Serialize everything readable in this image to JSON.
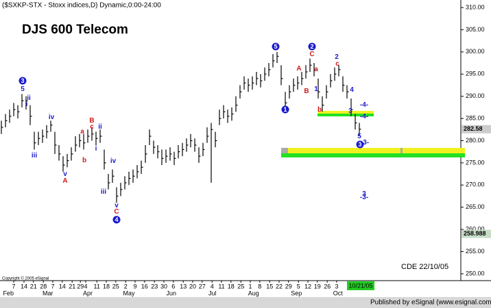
{
  "chart_data": {
    "type": "hlc",
    "header": "($SXKP-STX - Stoxx indices,D) Dynamic,0:00-24:00",
    "title": "DJS 600 Telecom",
    "note": "CDE 22/10/05",
    "copyright": "Copyright © 2005 eSignal",
    "footer": "Published by eSignal (www.esignal.com)",
    "color": "#000000",
    "high": [
      284.5,
      286,
      287,
      288.5,
      288,
      290.5,
      290,
      288,
      282,
      282,
      282.5,
      283.5,
      284.5,
      282,
      279,
      276.5,
      277,
      278.5,
      281,
      281.5,
      281.5,
      282.5,
      283,
      282,
      282.5,
      278,
      272.5,
      273.5,
      269.5,
      270.5,
      272,
      273,
      273.5,
      274.5,
      275.5,
      279,
      282.5,
      280,
      279,
      278,
      278,
      278.5,
      277.5,
      279,
      279.5,
      280.5,
      281.5,
      280.5,
      278.5,
      279.5,
      283,
      284,
      282,
      287,
      288,
      287,
      287.5,
      290,
      292.5,
      294.5,
      294,
      294.5,
      295.5,
      295,
      296.5,
      297.5,
      299.5,
      300,
      297,
      291,
      292.5,
      294,
      294.5,
      295.5,
      297,
      298.5,
      297.5,
      294,
      290,
      292.5,
      295,
      296.5,
      297,
      294.5,
      292.5,
      289.5,
      286,
      284
    ],
    "low": [
      281.5,
      283,
      284,
      285.5,
      285,
      287.5,
      287,
      283.5,
      278,
      279,
      279.5,
      280.5,
      282,
      277,
      275.5,
      273,
      274,
      275.5,
      277.5,
      278.5,
      278,
      279.5,
      280,
      279,
      279.5,
      273.5,
      269,
      270.5,
      266,
      267.5,
      269,
      270,
      270.5,
      271.5,
      272.5,
      275,
      279,
      277,
      276,
      274.5,
      275,
      275.5,
      274.5,
      276,
      276.5,
      277.5,
      278.5,
      277.5,
      275,
      276.5,
      279.5,
      270.5,
      278.5,
      283.5,
      285,
      284,
      284.5,
      286.5,
      289.5,
      291.5,
      291,
      291.5,
      292.5,
      292,
      293.5,
      294.5,
      296.5,
      297.5,
      292.5,
      287,
      289.5,
      291,
      291.5,
      292.5,
      294,
      295.5,
      294.5,
      289.5,
      286.5,
      289.5,
      292,
      293.5,
      294.5,
      291,
      289.5,
      285.5,
      282.5,
      281
    ],
    "close": [
      283,
      284.5,
      285.5,
      287,
      286.5,
      289,
      289,
      285.5,
      279.5,
      280.5,
      281,
      282,
      283.5,
      279,
      277,
      274.5,
      275.5,
      277,
      279,
      280,
      279.5,
      281,
      281.5,
      280.5,
      281,
      275,
      270.5,
      272,
      267.5,
      269,
      270.5,
      271.5,
      272,
      273,
      274,
      277,
      281,
      278.5,
      277.5,
      276,
      276.5,
      277,
      276,
      277.5,
      278,
      279,
      280,
      279,
      276.5,
      278,
      281,
      282.5,
      280,
      285,
      286.5,
      285.5,
      286,
      288,
      291,
      293,
      292.5,
      293,
      294,
      293.5,
      295,
      296,
      298,
      299,
      294,
      288.5,
      291,
      292.5,
      293,
      294,
      295.5,
      297,
      296,
      291,
      288,
      291,
      293.5,
      295,
      296,
      292.5,
      291,
      287,
      284,
      282.58
    ],
    "price_markers": [
      282.58,
      258.988
    ],
    "ylim": [
      248.45,
      311.7
    ],
    "yticks": [
      {
        "value": 250,
        "label": "250.00"
      },
      {
        "value": 255,
        "label": "255.00"
      },
      {
        "value": 260,
        "label": "260.00"
      },
      {
        "value": 265,
        "label": "265.00"
      },
      {
        "value": 270,
        "label": "270.00"
      },
      {
        "value": 275,
        "label": "275.00"
      },
      {
        "value": 280,
        "label": "280.00"
      },
      {
        "value": 285,
        "label": "285.00"
      },
      {
        "value": 290,
        "label": "290.00"
      },
      {
        "value": 295,
        "label": "295.00"
      },
      {
        "value": 300,
        "label": "300.00"
      },
      {
        "value": 305,
        "label": "305.00"
      },
      {
        "value": 310,
        "label": "310.00"
      }
    ],
    "xticks": [
      {
        "value": 3,
        "label": "7"
      },
      {
        "value": 5.5,
        "label": "14"
      },
      {
        "value": 7.8,
        "label": "21"
      },
      {
        "value": 10.2,
        "label": "28"
      },
      {
        "value": 12.5,
        "label": "7"
      },
      {
        "value": 14.8,
        "label": "14"
      },
      {
        "value": 17.2,
        "label": "21"
      },
      {
        "value": 19.2,
        "label": "29"
      },
      {
        "value": 20.5,
        "label": "4"
      },
      {
        "value": 23.2,
        "label": "11"
      },
      {
        "value": 25.5,
        "label": "18"
      },
      {
        "value": 27.8,
        "label": "25"
      },
      {
        "value": 30.2,
        "label": "2"
      },
      {
        "value": 32.5,
        "label": "9"
      },
      {
        "value": 34.8,
        "label": "16"
      },
      {
        "value": 37.2,
        "label": "23"
      },
      {
        "value": 39.5,
        "label": "30"
      },
      {
        "value": 41.8,
        "label": "6"
      },
      {
        "value": 44.2,
        "label": "13"
      },
      {
        "value": 46.5,
        "label": "20"
      },
      {
        "value": 48.8,
        "label": "27"
      },
      {
        "value": 51.2,
        "label": "4"
      },
      {
        "value": 53.5,
        "label": "11"
      },
      {
        "value": 55.8,
        "label": "18"
      },
      {
        "value": 58.2,
        "label": "25"
      },
      {
        "value": 60.5,
        "label": "1"
      },
      {
        "value": 62.8,
        "label": "8"
      },
      {
        "value": 65.2,
        "label": "15"
      },
      {
        "value": 67.5,
        "label": "22"
      },
      {
        "value": 69.8,
        "label": "29"
      },
      {
        "value": 72.2,
        "label": "5"
      },
      {
        "value": 74.5,
        "label": "12"
      },
      {
        "value": 76.8,
        "label": "19"
      },
      {
        "value": 79.2,
        "label": "26"
      },
      {
        "value": 81.5,
        "label": "3"
      }
    ],
    "month_ticks": [
      {
        "value": 1.7,
        "label": "Feb"
      },
      {
        "value": 11.3,
        "label": "Mar"
      },
      {
        "value": 21,
        "label": "Apr"
      },
      {
        "value": 31,
        "label": "May"
      },
      {
        "value": 41.3,
        "label": "Jun"
      },
      {
        "value": 51.3,
        "label": "Jul"
      },
      {
        "value": 61.3,
        "label": "Aug"
      },
      {
        "value": 71.7,
        "label": "Sep"
      },
      {
        "value": 81.8,
        "label": "Oct"
      }
    ],
    "last_date": {
      "value": 87,
      "label": "10/21/05"
    },
    "annotations": [
      {
        "text": "3",
        "color": "#1a1acc",
        "circled": true
      },
      {
        "text": "5",
        "color": "#1a1acc"
      },
      {
        "text": "ii",
        "color": "#1a1acc"
      },
      {
        "text": "i",
        "color": "#1a1acc"
      },
      {
        "text": "iii",
        "color": "#1a1acc"
      },
      {
        "text": "iv",
        "color": "#1a1acc"
      },
      {
        "text": "v",
        "color": "#1a1acc"
      },
      {
        "text": "A",
        "color": "#cc1a1a"
      },
      {
        "text": "a",
        "color": "#cc1a1a"
      },
      {
        "text": "b",
        "color": "#cc1a1a"
      },
      {
        "text": "B",
        "color": "#cc1a1a"
      },
      {
        "text": "c",
        "color": "#cc1a1a"
      },
      {
        "text": "ii",
        "color": "#1a1acc"
      },
      {
        "text": "i",
        "color": "#1a1acc"
      },
      {
        "text": "iv",
        "color": "#1a1acc"
      },
      {
        "text": "iii",
        "color": "#1a1acc"
      },
      {
        "text": "v",
        "color": "#1a1acc"
      },
      {
        "text": "C",
        "color": "#cc1a1a"
      },
      {
        "text": "4",
        "color": "#1a1acc",
        "circled": true
      },
      {
        "text": "5",
        "color": "#1a1acc",
        "circled": true
      },
      {
        "text": "A",
        "color": "#cc1a1a"
      },
      {
        "text": "B",
        "color": "#cc1a1a"
      },
      {
        "text": "1",
        "color": "#1a1acc",
        "circled": true
      },
      {
        "text": "2",
        "color": "#1a1acc",
        "circled": true
      },
      {
        "text": "C",
        "color": "#cc1a1a"
      },
      {
        "text": "a",
        "color": "#cc1a1a"
      },
      {
        "text": "1",
        "color": "#1a1acc"
      },
      {
        "text": "b",
        "color": "#cc1a1a"
      },
      {
        "text": "2",
        "color": "#1a1acc"
      },
      {
        "text": "c",
        "color": "#cc1a1a"
      },
      {
        "text": "4",
        "color": "#1a1acc"
      },
      {
        "text": "3",
        "color": "#1a1acc"
      },
      {
        "text": "-4-",
        "color": "#1a1acc"
      },
      {
        "text": "-4-",
        "color": "#1a1acc"
      },
      {
        "text": "5",
        "color": "#1a1acc"
      },
      {
        "text": "3",
        "color": "#1a1acc",
        "circled": true
      },
      {
        "text": "-3-",
        "color": "#1a1acc"
      },
      {
        "text": "3",
        "color": "#1a1acc"
      },
      {
        "text": "-3-",
        "color": "#1a1acc"
      }
    ]
  }
}
